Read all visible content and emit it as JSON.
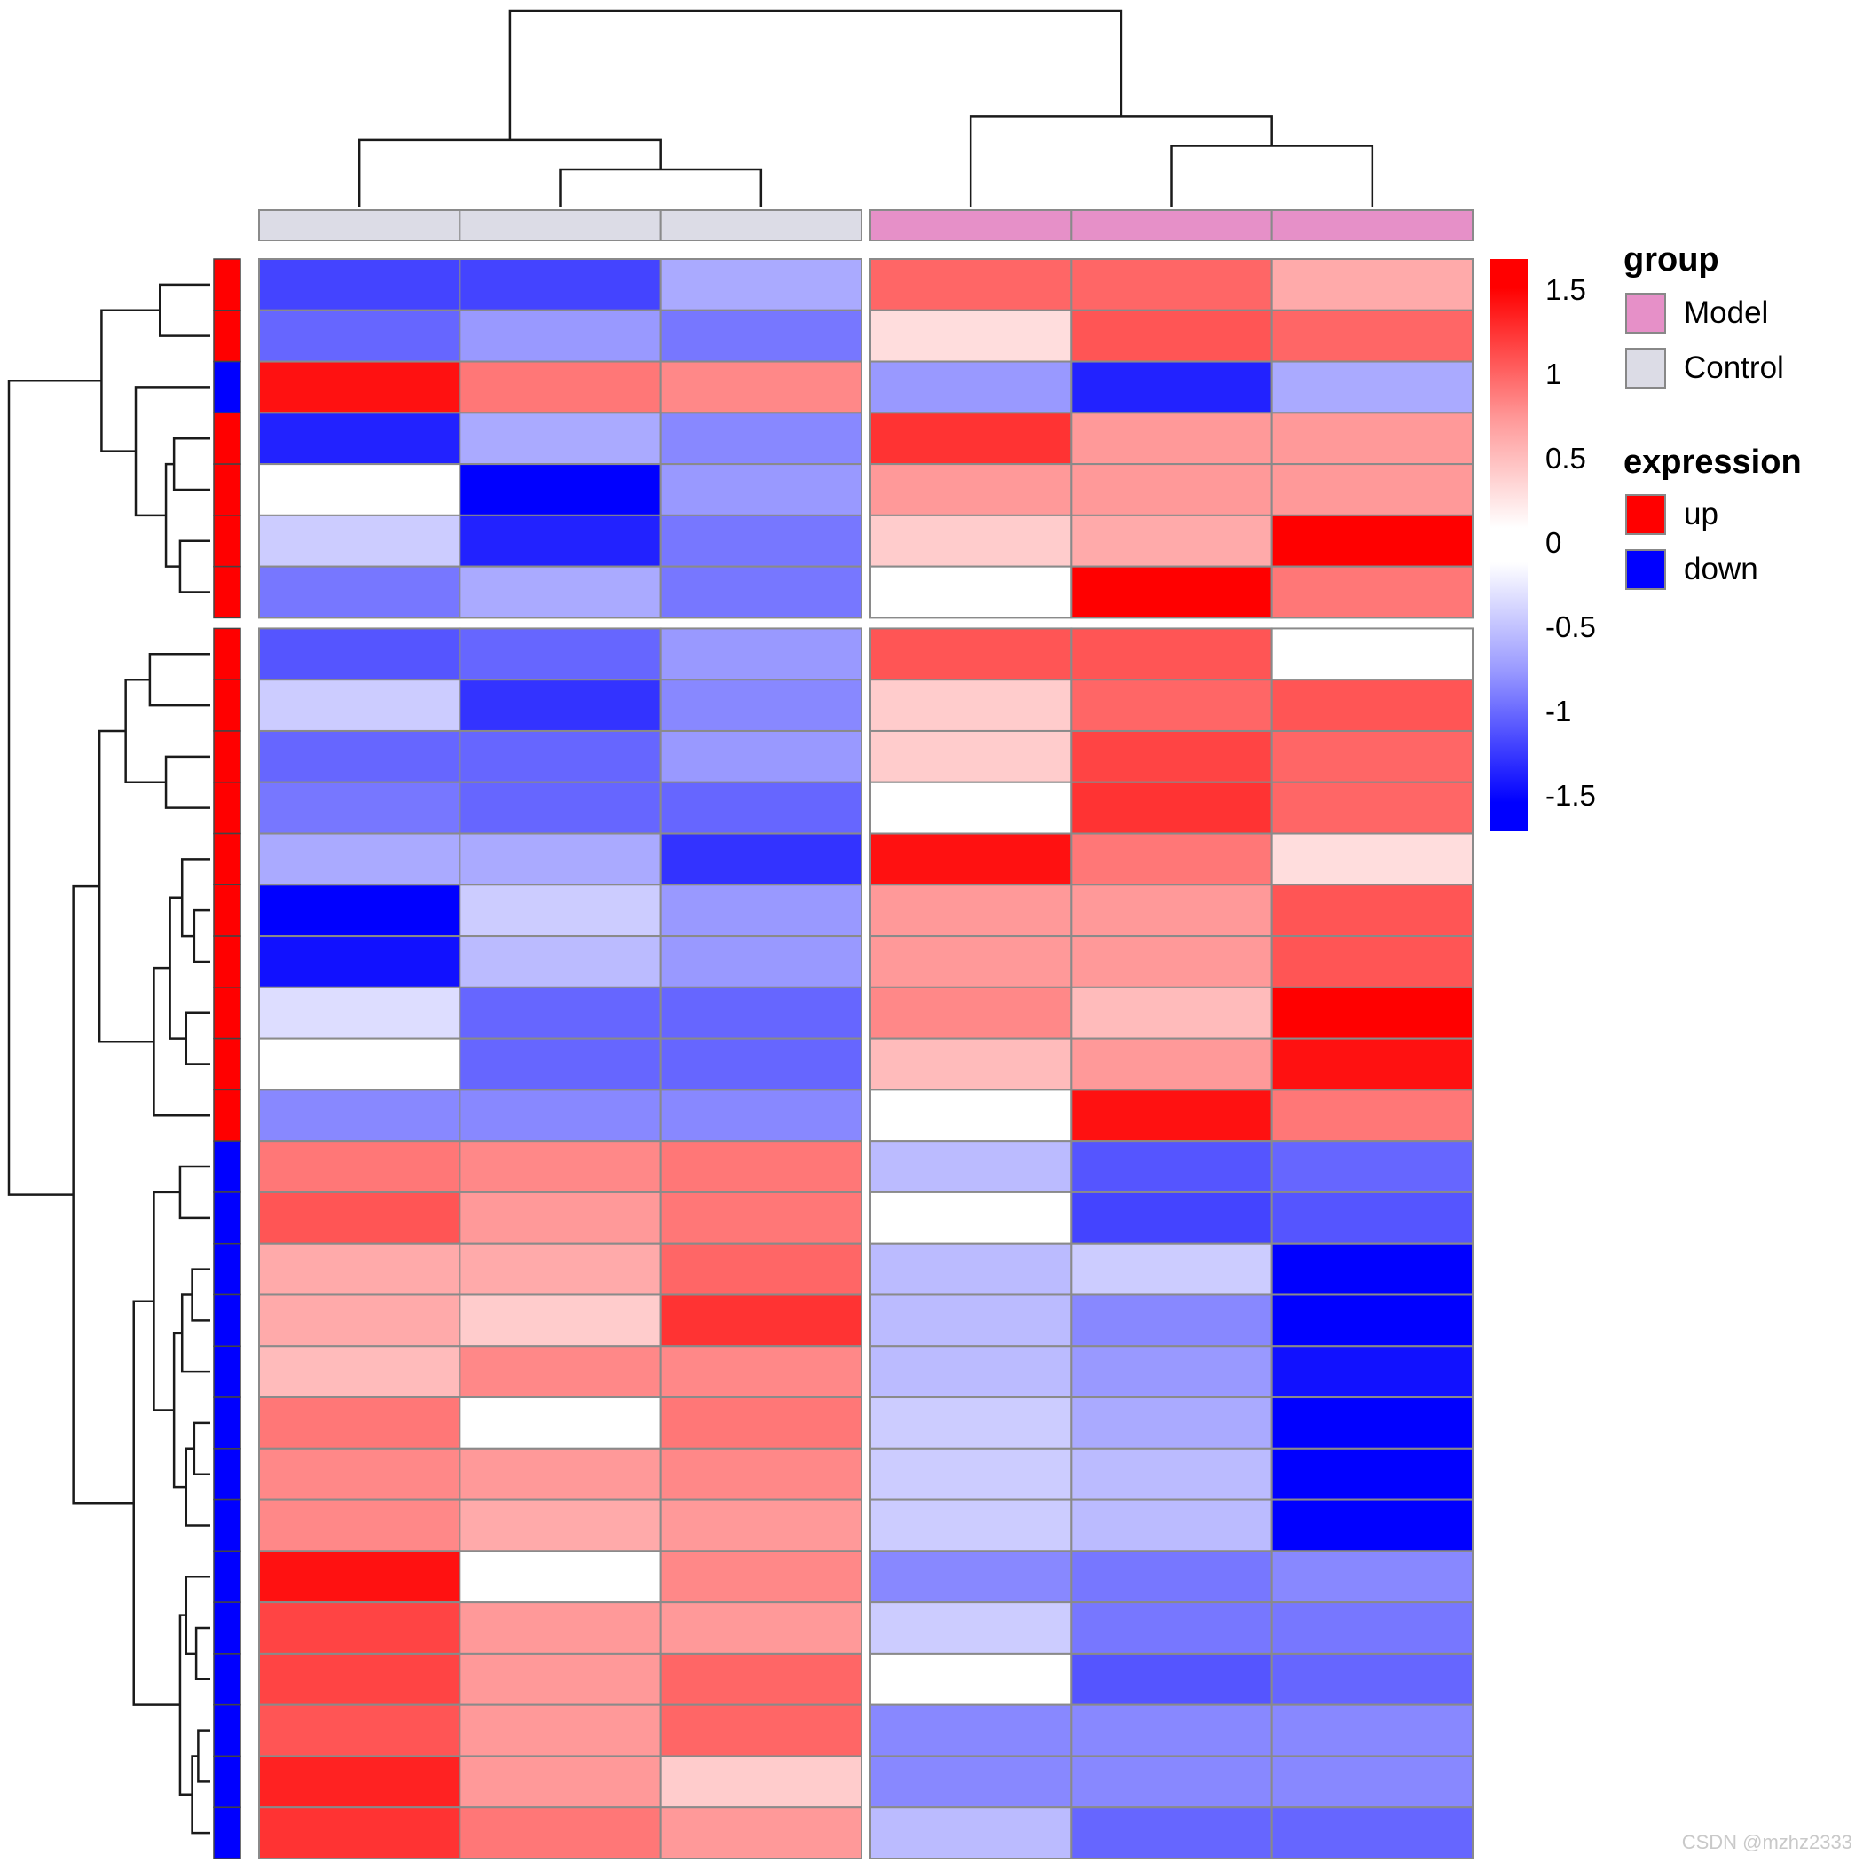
{
  "watermark": "CSDN @mzhz2333",
  "legend": {
    "colorbar": {
      "ticks": [
        "1.5",
        "1",
        "0.5",
        "0",
        "-0.5",
        "-1",
        "-1.5"
      ],
      "top_color": "#FF0000",
      "mid_color": "#FFFFFF",
      "bottom_color": "#0000FF"
    },
    "group": {
      "title": "group",
      "items": [
        {
          "label": "Model",
          "color": "#E690C8"
        },
        {
          "label": "Control",
          "color": "#DCDCE6"
        }
      ]
    },
    "expression": {
      "title": "expression",
      "items": [
        {
          "label": "up",
          "color": "#FF0000"
        },
        {
          "label": "down",
          "color": "#0000FF"
        }
      ]
    }
  },
  "chart_data": {
    "type": "heatmap",
    "title": "",
    "col_groups": [
      "Control",
      "Control",
      "Control",
      "Model",
      "Model",
      "Model"
    ],
    "row_expression": [
      "up",
      "up",
      "down",
      "up",
      "up",
      "up",
      "up",
      "up",
      "up",
      "up",
      "up",
      "up",
      "up",
      "up",
      "up",
      "up",
      "up",
      "down",
      "down",
      "down",
      "down",
      "down",
      "down",
      "down",
      "down",
      "down",
      "down",
      "down",
      "down",
      "down",
      "down"
    ],
    "value_range": [
      -1.5,
      1.5
    ],
    "gaps": {
      "after_row": 7,
      "after_col": 3
    },
    "values": [
      [
        -1.1,
        -1.1,
        -0.5,
        0.9,
        0.9,
        0.5
      ],
      [
        -0.9,
        -0.6,
        -0.8,
        0.2,
        1.0,
        0.9
      ],
      [
        1.4,
        0.8,
        0.7,
        -0.6,
        -1.3,
        -0.5
      ],
      [
        -1.3,
        -0.5,
        -0.7,
        1.2,
        0.6,
        0.6
      ],
      [
        0.0,
        -1.5,
        -0.6,
        0.6,
        0.6,
        0.6
      ],
      [
        -0.3,
        -1.3,
        -0.8,
        0.3,
        0.5,
        1.5
      ],
      [
        -0.8,
        -0.5,
        -0.8,
        0.0,
        1.5,
        0.8
      ],
      [
        -1.0,
        -0.9,
        -0.6,
        1.0,
        1.0,
        0.0
      ],
      [
        -0.3,
        -1.2,
        -0.7,
        0.3,
        0.9,
        1.0
      ],
      [
        -0.9,
        -0.9,
        -0.6,
        0.3,
        1.1,
        0.9
      ],
      [
        -0.8,
        -0.9,
        -0.9,
        0.0,
        1.2,
        0.9
      ],
      [
        -0.5,
        -0.5,
        -1.2,
        1.4,
        0.8,
        0.2
      ],
      [
        -1.5,
        -0.3,
        -0.6,
        0.6,
        0.6,
        1.0
      ],
      [
        -1.4,
        -0.4,
        -0.6,
        0.6,
        0.6,
        1.0
      ],
      [
        -0.2,
        -0.9,
        -0.9,
        0.7,
        0.4,
        1.5
      ],
      [
        0.0,
        -0.9,
        -0.9,
        0.4,
        0.6,
        1.4
      ],
      [
        -0.7,
        -0.7,
        -0.7,
        0.0,
        1.4,
        0.8
      ],
      [
        0.8,
        0.7,
        0.8,
        -0.4,
        -1.0,
        -0.9
      ],
      [
        1.0,
        0.6,
        0.8,
        0.0,
        -1.1,
        -1.0
      ],
      [
        0.5,
        0.5,
        0.9,
        -0.4,
        -0.3,
        -1.5
      ],
      [
        0.5,
        0.3,
        1.2,
        -0.4,
        -0.7,
        -1.5
      ],
      [
        0.4,
        0.7,
        0.7,
        -0.4,
        -0.6,
        -1.4
      ],
      [
        0.8,
        0.0,
        0.8,
        -0.3,
        -0.5,
        -1.5
      ],
      [
        0.7,
        0.6,
        0.7,
        -0.3,
        -0.4,
        -1.5
      ],
      [
        0.7,
        0.5,
        0.6,
        -0.3,
        -0.4,
        -1.5
      ],
      [
        1.4,
        0.0,
        0.7,
        -0.7,
        -0.8,
        -0.7
      ],
      [
        1.1,
        0.6,
        0.6,
        -0.3,
        -0.8,
        -0.8
      ],
      [
        1.1,
        0.6,
        0.9,
        0.0,
        -1.0,
        -0.9
      ],
      [
        1.0,
        0.6,
        0.9,
        -0.7,
        -0.7,
        -0.7
      ],
      [
        1.3,
        0.6,
        0.3,
        -0.7,
        -0.7,
        -0.7
      ],
      [
        1.2,
        0.8,
        0.6,
        -0.4,
        -0.9,
        -0.9
      ]
    ],
    "col_dendrogram": [
      [
        0,
        [
          1,
          2,
          0.19
        ],
        0.34
      ],
      [
        3,
        [
          4,
          5,
          0.31
        ],
        0.46
      ],
      1.0
    ],
    "row_dendrogram": [
      [
        [
          0,
          1,
          0.25
        ],
        [
          2,
          [
            [
              3,
              4,
              0.18
            ],
            [
              5,
              6,
              0.15
            ],
            0.22
          ],
          0.37
        ],
        0.54
      ],
      [
        [
          [
            [
              7,
              8,
              0.3
            ],
            [
              9,
              10,
              0.22
            ],
            0.42
          ],
          [
            [
              [
                11,
                [
                  12,
                  13,
                  0.08
                ],
                0.14
              ],
              [
                14,
                15,
                0.12
              ],
              0.2
            ],
            16,
            0.28
          ],
          0.55
        ],
        [
          [
            [
              17,
              18,
              0.15
            ],
            [
              [
                [
                  19,
                  20,
                  0.09
                ],
                21,
                0.14
              ],
              [
                [
                  22,
                  23,
                  0.08
                ],
                24,
                0.12
              ],
              0.18
            ],
            0.28
          ],
          [
            [
              25,
              [
                26,
                27,
                0.07
              ],
              0.12
            ],
            [
              [
                28,
                29,
                0.06
              ],
              30,
              0.09
            ],
            0.15
          ],
          0.38
        ],
        0.68
      ],
      1.0
    ]
  }
}
